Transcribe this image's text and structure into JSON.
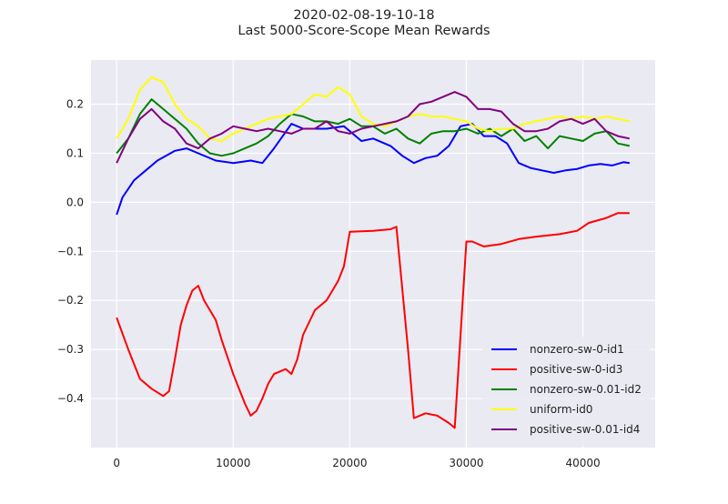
{
  "chart_data": {
    "type": "line",
    "title_lines": [
      "2020-02-08-19-10-18",
      "Last 5000-Score-Scope Mean Rewards"
    ],
    "xlabel": "",
    "ylabel": "",
    "xlim": [
      -2200,
      46200
    ],
    "ylim": [
      -0.5,
      0.29
    ],
    "xticks": [
      0,
      10000,
      20000,
      30000,
      40000
    ],
    "xtick_labels": [
      "0",
      "10000",
      "20000",
      "30000",
      "40000"
    ],
    "yticks": [
      -0.4,
      -0.3,
      -0.2,
      -0.1,
      0.0,
      0.1,
      0.2
    ],
    "ytick_labels": [
      "−0.4",
      "−0.3",
      "−0.2",
      "−0.1",
      "0.0",
      "0.1",
      "0.2"
    ],
    "grid": true,
    "legend_position": "lower-right",
    "series": [
      {
        "name": "nonzero-sw-0-id1",
        "color": "#0000ff",
        "x": [
          0,
          500,
          1500,
          2500,
          3500,
          5000,
          6000,
          7000,
          8500,
          10000,
          11500,
          12500,
          13500,
          15000,
          16000,
          18000,
          19500,
          21000,
          22000,
          23500,
          24500,
          25500,
          26500,
          27500,
          28500,
          29500,
          30500,
          31500,
          32500,
          33500,
          34500,
          35500,
          36500,
          37500,
          38500,
          39500,
          40500,
          41500,
          42500,
          43500,
          44000
        ],
        "y": [
          -0.025,
          0.01,
          0.045,
          0.065,
          0.085,
          0.105,
          0.11,
          0.1,
          0.085,
          0.08,
          0.085,
          0.08,
          0.11,
          0.16,
          0.15,
          0.15,
          0.155,
          0.125,
          0.13,
          0.115,
          0.095,
          0.08,
          0.09,
          0.095,
          0.115,
          0.155,
          0.16,
          0.135,
          0.135,
          0.12,
          0.08,
          0.07,
          0.065,
          0.06,
          0.065,
          0.068,
          0.075,
          0.078,
          0.075,
          0.082,
          0.08
        ]
      },
      {
        "name": "positive-sw-0-id3",
        "color": "#ff0000",
        "x": [
          0,
          1000,
          2000,
          3000,
          4000,
          4500,
          5000,
          5500,
          6000,
          6500,
          7000,
          7500,
          8500,
          9000,
          10000,
          11000,
          11500,
          12000,
          12500,
          13000,
          13500,
          14000,
          14500,
          15000,
          15500,
          16000,
          17000,
          18000,
          19000,
          19500,
          20000,
          22000,
          23500,
          24000,
          25000,
          25500,
          26500,
          27500,
          28500,
          29000,
          30000,
          30500,
          31500,
          33000,
          34500,
          36000,
          38000,
          39500,
          40500,
          42000,
          43000,
          44000
        ],
        "y": [
          -0.235,
          -0.3,
          -0.36,
          -0.38,
          -0.395,
          -0.385,
          -0.32,
          -0.25,
          -0.21,
          -0.18,
          -0.17,
          -0.2,
          -0.24,
          -0.28,
          -0.35,
          -0.41,
          -0.435,
          -0.425,
          -0.4,
          -0.37,
          -0.35,
          -0.345,
          -0.34,
          -0.35,
          -0.32,
          -0.27,
          -0.22,
          -0.2,
          -0.16,
          -0.13,
          -0.06,
          -0.058,
          -0.055,
          -0.05,
          -0.3,
          -0.44,
          -0.43,
          -0.435,
          -0.45,
          -0.46,
          -0.08,
          -0.08,
          -0.09,
          -0.085,
          -0.075,
          -0.07,
          -0.065,
          -0.058,
          -0.042,
          -0.032,
          -0.022,
          -0.022
        ]
      },
      {
        "name": "nonzero-sw-0.01-id2",
        "color": "#008000",
        "x": [
          0,
          1000,
          2000,
          3000,
          4000,
          5000,
          6000,
          7000,
          8000,
          9000,
          10000,
          11000,
          12000,
          13000,
          14000,
          15000,
          16000,
          17000,
          18000,
          19000,
          20000,
          21000,
          22000,
          23000,
          24000,
          25000,
          26000,
          27000,
          28000,
          29000,
          30000,
          31000,
          32000,
          33000,
          34000,
          35000,
          36000,
          37000,
          38000,
          39000,
          40000,
          41000,
          42000,
          43000,
          44000
        ],
        "y": [
          0.1,
          0.13,
          0.18,
          0.21,
          0.19,
          0.17,
          0.15,
          0.12,
          0.1,
          0.095,
          0.1,
          0.11,
          0.12,
          0.135,
          0.16,
          0.18,
          0.175,
          0.165,
          0.165,
          0.16,
          0.17,
          0.155,
          0.155,
          0.14,
          0.15,
          0.13,
          0.12,
          0.14,
          0.145,
          0.145,
          0.15,
          0.14,
          0.15,
          0.135,
          0.15,
          0.125,
          0.135,
          0.11,
          0.135,
          0.13,
          0.125,
          0.14,
          0.145,
          0.12,
          0.115
        ]
      },
      {
        "name": "uniform-id0",
        "color": "#ffff00",
        "x": [
          0,
          1000,
          2000,
          3000,
          4000,
          5000,
          6000,
          7000,
          8000,
          9000,
          10000,
          11000,
          12000,
          13000,
          14000,
          15000,
          16000,
          17000,
          18000,
          19000,
          20000,
          21000,
          22000,
          23000,
          24000,
          25000,
          26000,
          27000,
          28000,
          29000,
          30000,
          31000,
          32000,
          33000,
          34000,
          35000,
          36000,
          37000,
          38000,
          39000,
          40000,
          41000,
          42000,
          43000,
          44000
        ],
        "y": [
          0.13,
          0.17,
          0.23,
          0.255,
          0.245,
          0.2,
          0.17,
          0.155,
          0.13,
          0.125,
          0.14,
          0.15,
          0.16,
          0.17,
          0.175,
          0.18,
          0.2,
          0.22,
          0.215,
          0.235,
          0.22,
          0.175,
          0.16,
          0.155,
          0.165,
          0.175,
          0.18,
          0.175,
          0.175,
          0.17,
          0.165,
          0.15,
          0.145,
          0.15,
          0.15,
          0.16,
          0.165,
          0.17,
          0.175,
          0.17,
          0.175,
          0.17,
          0.175,
          0.17,
          0.165
        ]
      },
      {
        "name": "positive-sw-0.01-id4",
        "color": "#800080",
        "x": [
          0,
          1000,
          2000,
          3000,
          4000,
          5000,
          6000,
          7000,
          8000,
          9000,
          10000,
          11000,
          12000,
          13000,
          14000,
          15000,
          16000,
          17000,
          18000,
          19000,
          20000,
          21000,
          22000,
          23000,
          24000,
          25000,
          26000,
          27000,
          28000,
          29000,
          30000,
          31000,
          32000,
          33000,
          34000,
          35000,
          36000,
          37000,
          38000,
          39000,
          40000,
          41000,
          42000,
          43000,
          44000
        ],
        "y": [
          0.08,
          0.13,
          0.17,
          0.19,
          0.165,
          0.15,
          0.12,
          0.11,
          0.13,
          0.14,
          0.155,
          0.15,
          0.145,
          0.15,
          0.145,
          0.14,
          0.15,
          0.15,
          0.165,
          0.145,
          0.14,
          0.15,
          0.155,
          0.16,
          0.165,
          0.175,
          0.2,
          0.205,
          0.215,
          0.225,
          0.215,
          0.19,
          0.19,
          0.185,
          0.16,
          0.145,
          0.145,
          0.15,
          0.165,
          0.17,
          0.16,
          0.17,
          0.145,
          0.135,
          0.13
        ]
      }
    ]
  }
}
